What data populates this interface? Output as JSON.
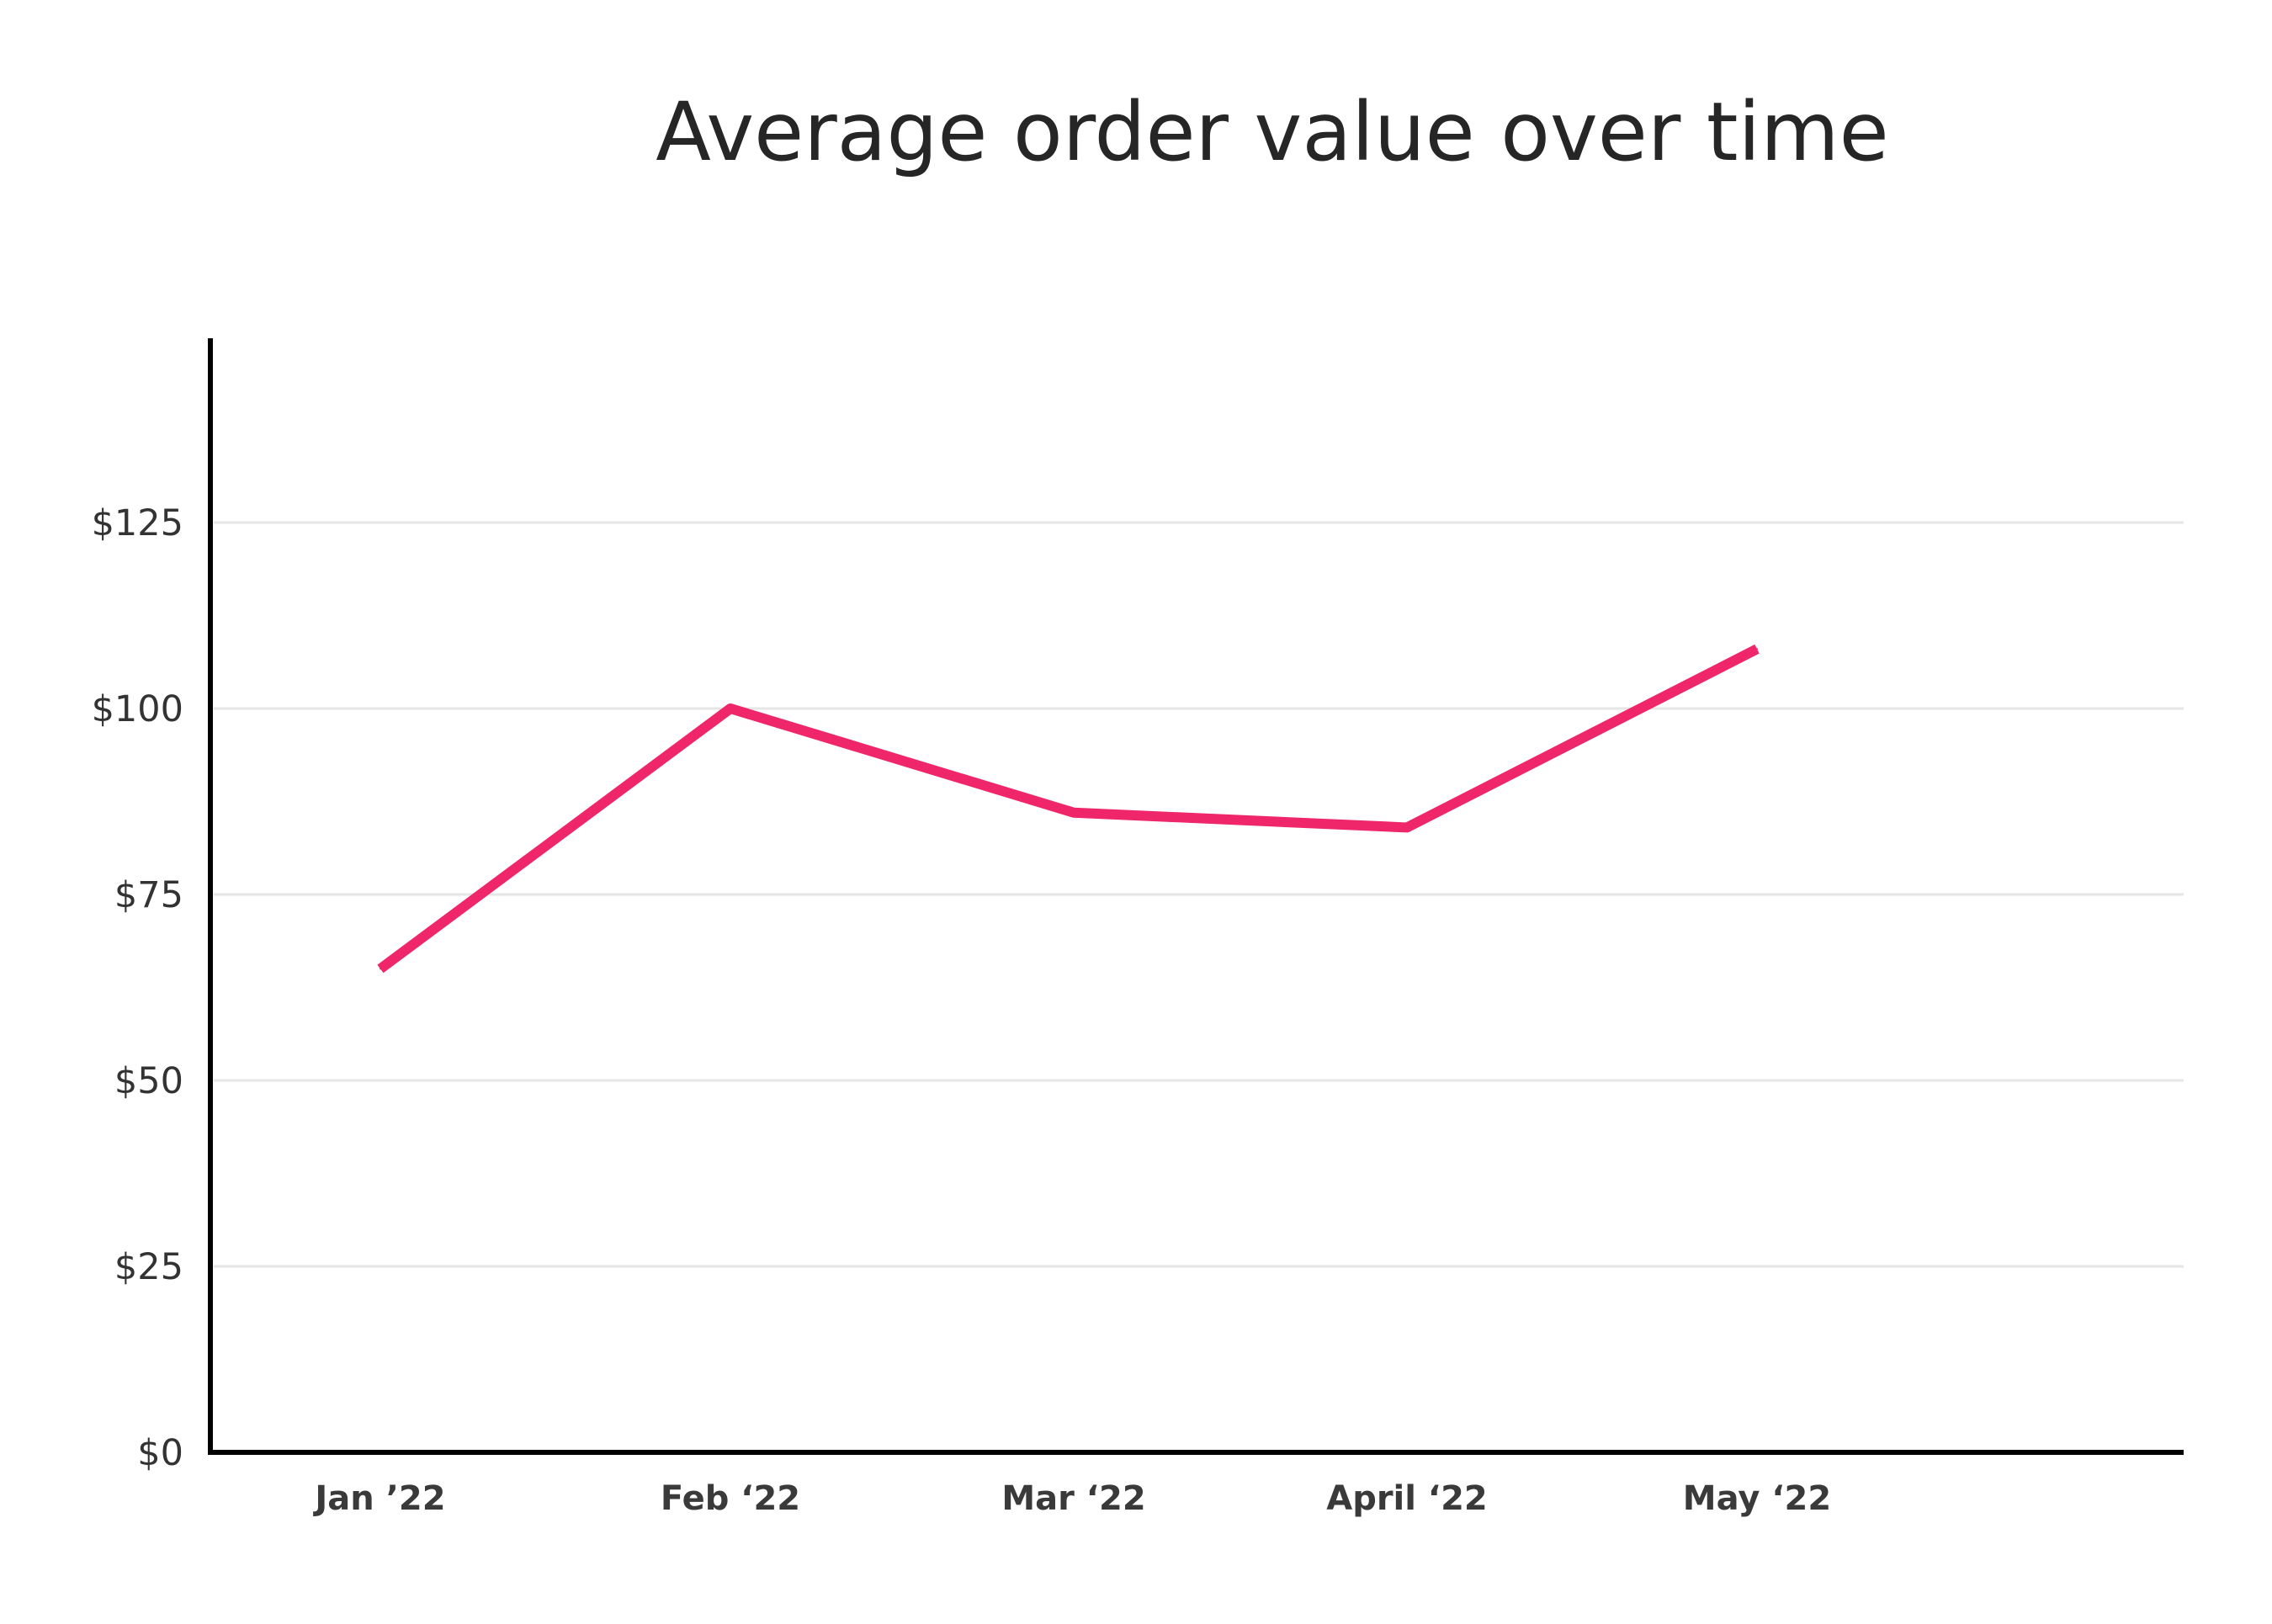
{
  "chart_data": {
    "type": "line",
    "title": "Average order value over time",
    "xlabel": "",
    "ylabel": "",
    "categories": [
      "Jan ’22",
      "Feb ‘22",
      "Mar ‘22",
      "April ‘22",
      "May ‘22"
    ],
    "series": [
      {
        "values": [
          65,
          100,
          86,
          84,
          108
        ]
      }
    ],
    "ylim": [
      0,
      150
    ],
    "yticks": [
      0,
      25,
      50,
      75,
      100,
      125
    ],
    "ytick_labels": [
      "$0",
      "$25",
      "$50",
      "$75",
      "$100",
      "$125"
    ],
    "grid": true,
    "legend": "none",
    "colors": {
      "line": "#f0266b",
      "grid": "#e6e6e6",
      "axis": "#000000"
    }
  }
}
